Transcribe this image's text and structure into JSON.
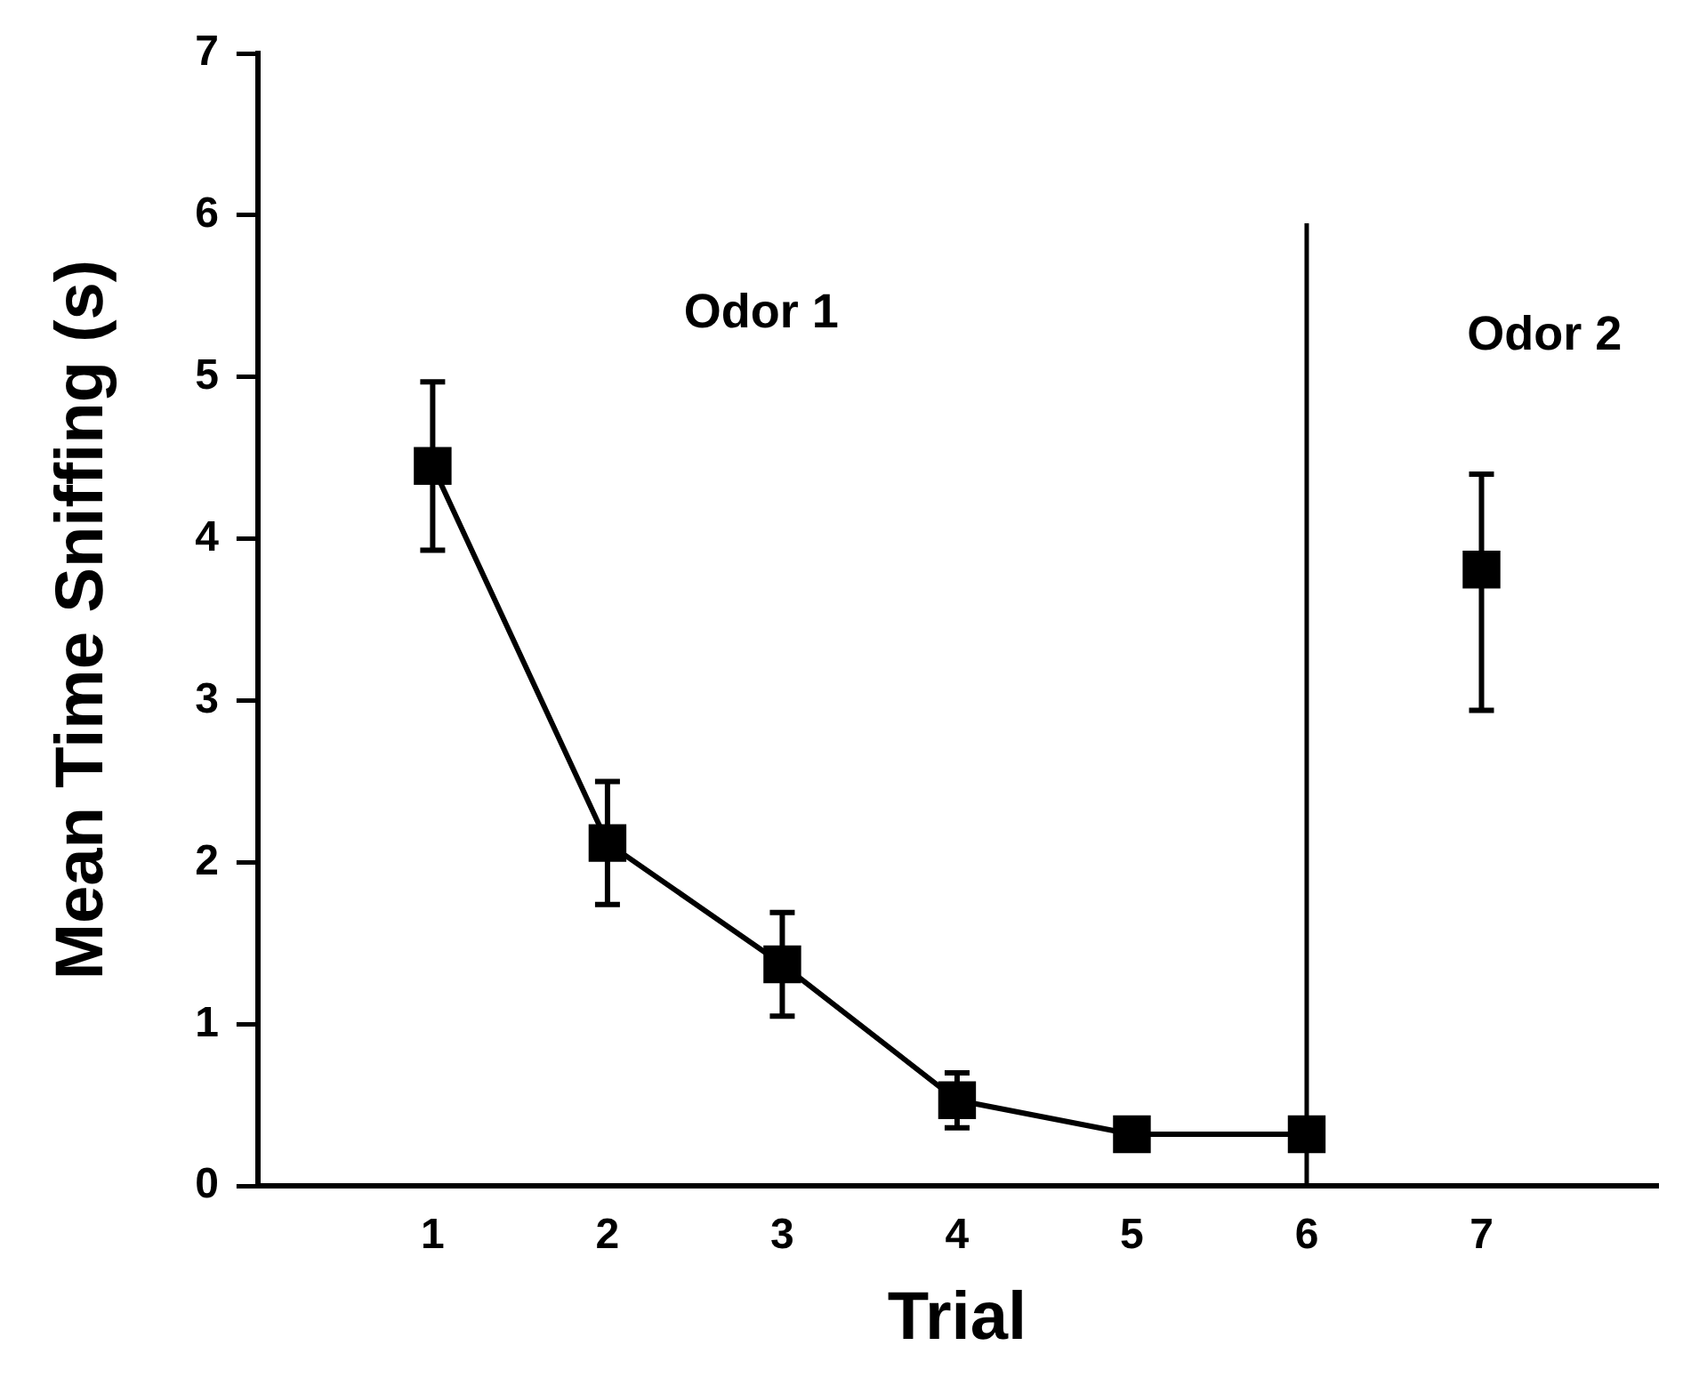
{
  "chart_data": {
    "type": "line",
    "xlabel": "Trial",
    "ylabel": "Mean Time Sniffing (s)",
    "xlim": [
      0,
      8
    ],
    "xticks": [
      1,
      2,
      3,
      4,
      5,
      6,
      7
    ],
    "ylim": [
      0,
      7
    ],
    "yticks": [
      0,
      1,
      2,
      3,
      4,
      5,
      6,
      7
    ],
    "grid": false,
    "legend": false,
    "marker": "square",
    "line_style": "solid",
    "series": [
      {
        "color": "#000000",
        "x": [
          1,
          2,
          3,
          4,
          5,
          6
        ],
        "values": [
          4.45,
          2.12,
          1.37,
          0.53,
          0.32,
          0.32
        ],
        "errors": [
          0.52,
          0.38,
          0.32,
          0.17,
          null,
          null
        ]
      },
      {
        "type": "scatter",
        "color": "#000000",
        "x": [
          7
        ],
        "values": [
          3.81
        ],
        "errors": [
          [
            2.94,
            4.4
          ]
        ]
      }
    ],
    "ref_lines": [
      {
        "axis": "x",
        "value": 6,
        "color": "#000000"
      }
    ],
    "annotations": [
      "Odor 1",
      "Odor 2"
    ]
  }
}
